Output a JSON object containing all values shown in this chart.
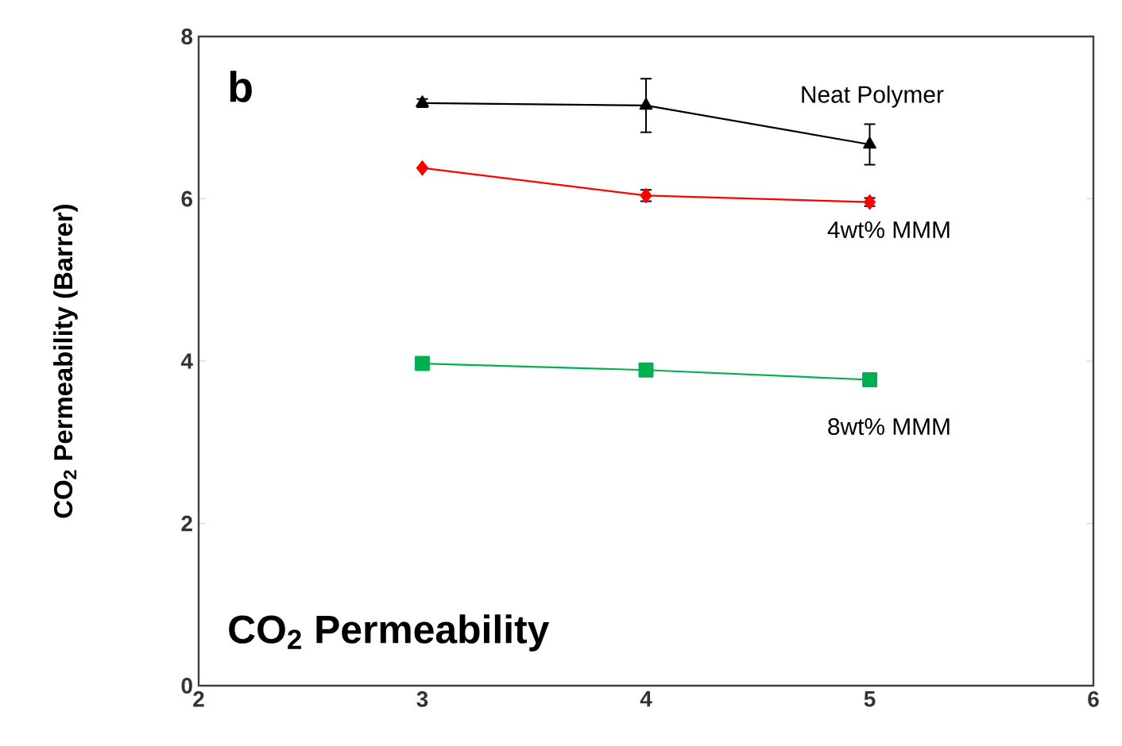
{
  "chart_data": {
    "type": "line",
    "ylabel": "CO$_{2}$ Permeability (Barrer)",
    "annotations": [
      "b",
      "CO$_{2}$ Permeability"
    ],
    "xlim": [
      2,
      6
    ],
    "xticks": [
      2,
      3,
      4,
      5,
      6
    ],
    "ylim": [
      0,
      8
    ],
    "yticks": [
      0,
      2,
      4,
      6,
      8
    ],
    "x": [
      3,
      4,
      5
    ],
    "series": [
      {
        "name": "Neat Polymer",
        "color": "#000000",
        "marker": "triangle",
        "values": [
          7.18,
          7.15,
          6.67
        ],
        "errors": [
          0.05,
          0.33,
          0.25
        ]
      },
      {
        "name": "4wt% MMM",
        "color": "#ff0000",
        "marker": "diamond",
        "values": [
          6.38,
          6.04,
          5.96
        ],
        "errors": [
          null,
          0.07,
          0.05
        ]
      },
      {
        "name": "8wt% MMM",
        "color": "#00b050",
        "marker": "square",
        "values": [
          3.97,
          3.89,
          3.77
        ]
      }
    ]
  }
}
